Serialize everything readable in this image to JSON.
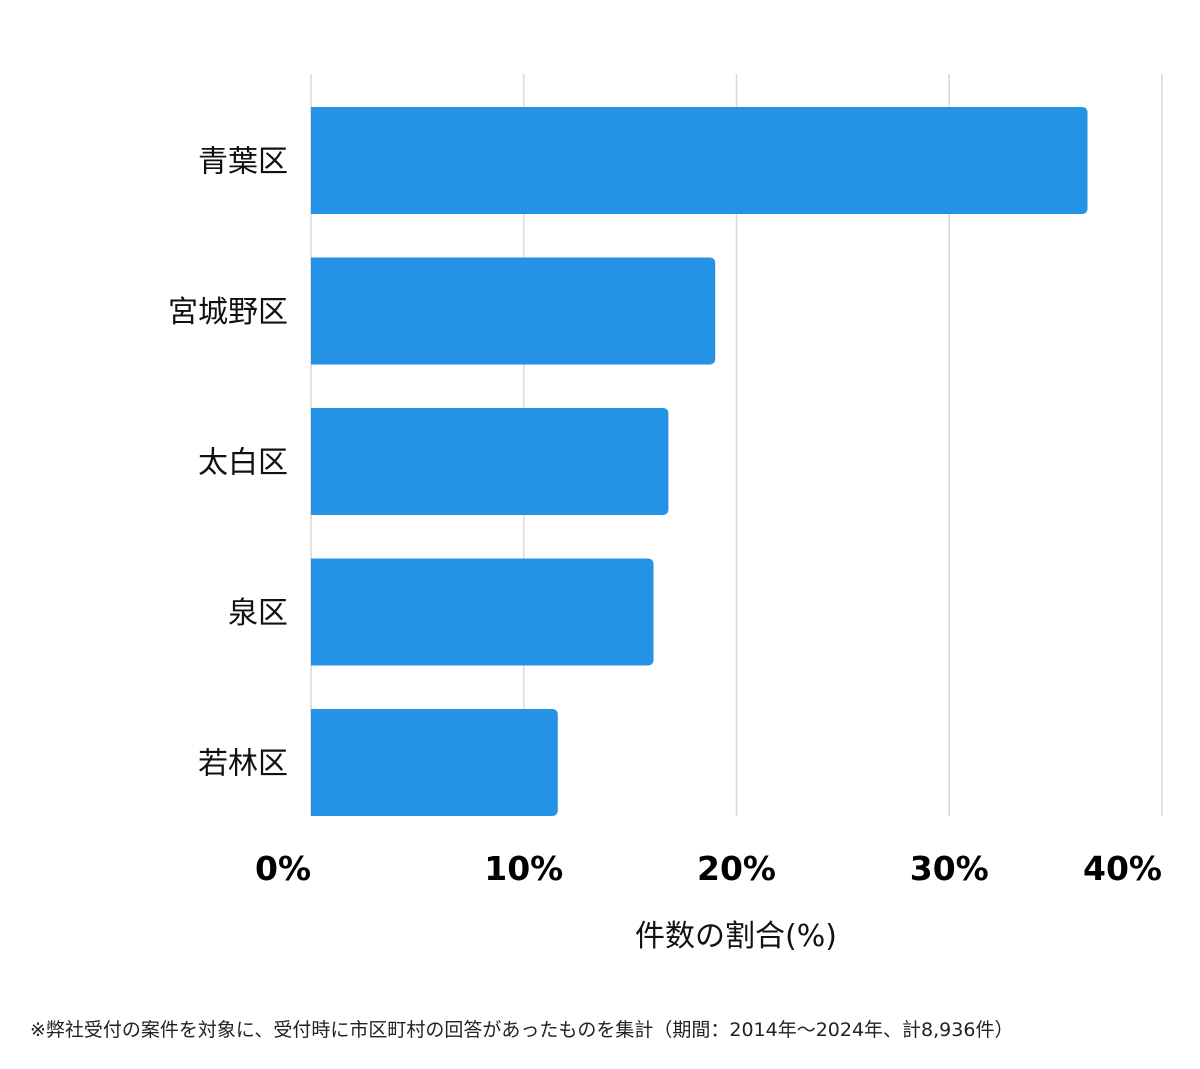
{
  "chart_data": {
    "type": "bar",
    "orientation": "horizontal",
    "categories": [
      "青葉区",
      "宮城野区",
      "太白区",
      "泉区",
      "若林区"
    ],
    "values": [
      36.5,
      19.0,
      16.8,
      16.1,
      11.6
    ],
    "unit": "%",
    "xlabel": "件数の割合(%)",
    "ylabel": "",
    "xlim": [
      0,
      40
    ],
    "xticks": [
      "0%",
      "10%",
      "20%",
      "30%",
      "40%"
    ],
    "grid": "vertical",
    "bar_color": "#2493E6",
    "grid_color": "#D9D9D9",
    "legend": "none"
  },
  "footnote": "※弊社受付の案件を対象に、受付時に市区町村の回答があったものを集計（期間：2014年～2024年、計8,936件）"
}
